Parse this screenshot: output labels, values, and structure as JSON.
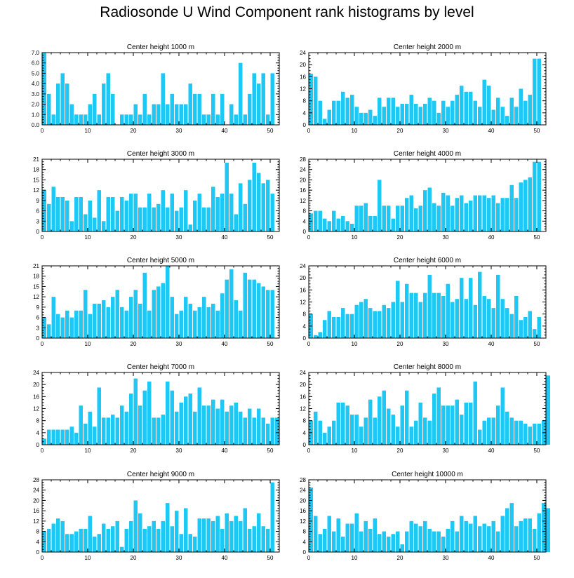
{
  "title": "Radiosonde U Wind Component rank histograms by level",
  "style": {
    "bar_color": "#1ec8f5",
    "axis_color": "#000000"
  },
  "chart_data": [
    {
      "type": "bar",
      "title": "Center height 1000 m",
      "ylim": [
        0,
        7
      ],
      "yticks": [
        "0.0",
        "1.0",
        "2.0",
        "3.0",
        "4.0",
        "5.0",
        "6.0",
        "7.0"
      ],
      "xticks": [
        "0",
        "10",
        "20",
        "30",
        "40",
        "50"
      ],
      "values": [
        7,
        3,
        1,
        4,
        5,
        4,
        2,
        1,
        1,
        1,
        2,
        3,
        1,
        4,
        5,
        3,
        0,
        1,
        1,
        1,
        2,
        1,
        3,
        1,
        2,
        2,
        5,
        2,
        3,
        2,
        2,
        2,
        4,
        3,
        3,
        1,
        1,
        3,
        1,
        3,
        0,
        2,
        1,
        6,
        1,
        3,
        5,
        4,
        5,
        1,
        5,
        0
      ]
    },
    {
      "type": "bar",
      "title": "Center height 2000 m",
      "ylim": [
        0,
        24
      ],
      "yticks": [
        "0",
        "4",
        "8",
        "12",
        "16",
        "20",
        "24"
      ],
      "xticks": [
        "0",
        "10",
        "20",
        "30",
        "40",
        "50"
      ],
      "values": [
        17,
        16,
        8,
        2,
        5,
        8,
        8,
        11,
        9,
        10,
        6,
        4,
        4,
        5,
        3,
        9,
        6,
        9,
        9,
        6,
        7,
        7,
        10,
        7,
        6,
        7,
        9,
        8,
        4,
        8,
        6,
        8,
        10,
        13,
        11,
        11,
        8,
        6,
        15,
        13,
        5,
        9,
        6,
        3,
        9,
        6,
        12,
        8,
        10,
        22,
        22
      ]
    },
    {
      "type": "bar",
      "title": "Center height 3000 m",
      "ylim": [
        0,
        21
      ],
      "yticks": [
        "0",
        "3",
        "6",
        "9",
        "12",
        "15",
        "18",
        "21"
      ],
      "xticks": [
        "0",
        "10",
        "20",
        "30",
        "40",
        "50"
      ],
      "values": [
        12,
        8,
        13,
        10,
        10,
        9,
        3,
        10,
        10,
        5,
        9,
        4,
        12,
        3,
        10,
        10,
        6,
        10,
        9,
        11,
        11,
        7,
        7,
        11,
        7,
        8,
        12,
        7,
        11,
        6,
        7,
        12,
        2,
        9,
        11,
        7,
        7,
        13,
        10,
        11,
        20,
        11,
        5,
        14,
        8,
        15,
        20,
        17,
        14,
        15,
        11
      ]
    },
    {
      "type": "bar",
      "title": "Center height 4000 m",
      "ylim": [
        0,
        28
      ],
      "yticks": [
        "0",
        "4",
        "8",
        "12",
        "16",
        "20",
        "24",
        "28"
      ],
      "xticks": [
        "0",
        "10",
        "20",
        "30",
        "40",
        "50"
      ],
      "values": [
        7,
        8,
        8,
        5,
        4,
        8,
        5,
        6,
        4,
        3,
        10,
        10,
        11,
        6,
        6,
        20,
        10,
        10,
        5,
        10,
        10,
        13,
        14,
        9,
        10,
        16,
        17,
        11,
        10,
        15,
        14,
        10,
        13,
        14,
        11,
        12,
        14,
        14,
        14,
        13,
        14,
        11,
        13,
        13,
        18,
        13,
        19,
        20,
        21,
        27,
        27
      ]
    },
    {
      "type": "bar",
      "title": "Center height 5000 m",
      "ylim": [
        0,
        21
      ],
      "yticks": [
        "0",
        "3",
        "6",
        "9",
        "12",
        "15",
        "18",
        "21"
      ],
      "xticks": [
        "0",
        "10",
        "20",
        "30",
        "40",
        "50"
      ],
      "values": [
        6,
        4,
        12,
        7,
        6,
        8,
        6,
        8,
        8,
        14,
        7,
        10,
        10,
        11,
        9,
        12,
        14,
        9,
        8,
        12,
        14,
        10,
        19,
        8,
        14,
        15,
        16,
        21,
        12,
        7,
        8,
        12,
        10,
        8,
        9,
        12,
        9,
        10,
        8,
        13,
        17,
        20,
        11,
        8,
        19,
        17,
        17,
        16,
        15,
        14,
        14
      ]
    },
    {
      "type": "bar",
      "title": "Center height 6000 m",
      "ylim": [
        0,
        24
      ],
      "yticks": [
        "0",
        "4",
        "8",
        "12",
        "16",
        "20",
        "24"
      ],
      "xticks": [
        "0",
        "10",
        "20",
        "30",
        "40",
        "50"
      ],
      "values": [
        8,
        1,
        2,
        6,
        9,
        7,
        7,
        10,
        8,
        8,
        11,
        12,
        13,
        10,
        9,
        9,
        11,
        10,
        12,
        19,
        12,
        18,
        15,
        15,
        12,
        15,
        21,
        15,
        15,
        14,
        18,
        12,
        13,
        20,
        13,
        20,
        11,
        22,
        14,
        13,
        10,
        21,
        13,
        10,
        8,
        14,
        6,
        7,
        9,
        3,
        7
      ]
    },
    {
      "type": "bar",
      "title": "Center height 7000 m",
      "ylim": [
        0,
        24
      ],
      "yticks": [
        "0",
        "4",
        "8",
        "12",
        "16",
        "20",
        "24"
      ],
      "xticks": [
        "0",
        "10",
        "20",
        "30",
        "40",
        "50"
      ],
      "values": [
        2,
        5,
        5,
        5,
        5,
        5,
        6,
        4,
        13,
        7,
        11,
        6,
        19,
        9,
        9,
        10,
        9,
        13,
        11,
        17,
        22,
        13,
        18,
        21,
        9,
        9,
        10,
        21,
        18,
        11,
        14,
        16,
        17,
        11,
        19,
        13,
        13,
        15,
        12,
        15,
        11,
        13,
        14,
        11,
        9,
        12,
        9,
        12,
        9,
        7,
        9,
        9
      ]
    },
    {
      "type": "bar",
      "title": "Center height 8000 m",
      "ylim": [
        0,
        24
      ],
      "yticks": [
        "0",
        "4",
        "8",
        "12",
        "16",
        "20",
        "24"
      ],
      "xticks": [
        "0",
        "10",
        "20",
        "30",
        "40",
        "50"
      ],
      "values": [
        8,
        11,
        8,
        4,
        6,
        8,
        14,
        14,
        13,
        10,
        10,
        6,
        9,
        15,
        9,
        16,
        18,
        12,
        10,
        6,
        13,
        18,
        6,
        8,
        14,
        9,
        8,
        17,
        19,
        13,
        13,
        13,
        15,
        10,
        14,
        14,
        21,
        5,
        8,
        9,
        9,
        13,
        19,
        11,
        9,
        8,
        8,
        7,
        6,
        7,
        7,
        8,
        23
      ]
    },
    {
      "type": "bar",
      "title": "Center height 9000 m",
      "ylim": [
        0,
        28
      ],
      "yticks": [
        "0",
        "4",
        "8",
        "12",
        "16",
        "20",
        "24",
        "28"
      ],
      "xticks": [
        "0",
        "10",
        "20",
        "30",
        "40",
        "50"
      ],
      "values": [
        8,
        9,
        11,
        13,
        12,
        7,
        7,
        8,
        9,
        9,
        14,
        6,
        7,
        11,
        9,
        10,
        12,
        2,
        9,
        12,
        20,
        15,
        9,
        10,
        12,
        9,
        12,
        19,
        10,
        16,
        7,
        17,
        7,
        6,
        13,
        13,
        13,
        12,
        14,
        9,
        15,
        12,
        14,
        12,
        17,
        9,
        10,
        15,
        10,
        9,
        27
      ]
    },
    {
      "type": "bar",
      "title": "Center height 10000 m",
      "ylim": [
        0,
        28
      ],
      "yticks": [
        "0",
        "4",
        "8",
        "12",
        "16",
        "20",
        "24",
        "28"
      ],
      "xticks": [
        "0",
        "10",
        "20",
        "30",
        "40",
        "50"
      ],
      "values": [
        25,
        14,
        7,
        9,
        14,
        8,
        13,
        6,
        11,
        11,
        15,
        8,
        12,
        9,
        13,
        7,
        8,
        6,
        7,
        8,
        3,
        8,
        12,
        11,
        10,
        12,
        9,
        8,
        8,
        6,
        9,
        12,
        8,
        14,
        12,
        11,
        14,
        10,
        11,
        10,
        12,
        8,
        14,
        17,
        19,
        10,
        12,
        13,
        13,
        9,
        15,
        19,
        17
      ]
    }
  ]
}
